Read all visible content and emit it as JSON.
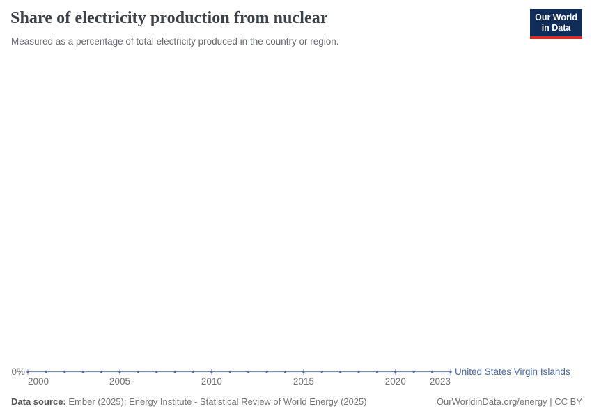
{
  "header": {
    "title": "Share of electricity production from nuclear",
    "subtitle": "Measured as a percentage of total electricity produced in the country or region.",
    "logo": {
      "line1": "Our World",
      "line2": "in Data",
      "bg_color": "#102c58",
      "accent_color": "#dc2d25"
    }
  },
  "chart_data": {
    "type": "line",
    "title": "Share of electricity production from nuclear",
    "x": [
      2000,
      2001,
      2002,
      2003,
      2004,
      2005,
      2006,
      2007,
      2008,
      2009,
      2010,
      2011,
      2012,
      2013,
      2014,
      2015,
      2016,
      2017,
      2018,
      2019,
      2020,
      2021,
      2022,
      2023
    ],
    "series": [
      {
        "name": "United States Virgin Islands",
        "color": "#4c6ba9",
        "values": [
          0,
          0,
          0,
          0,
          0,
          0,
          0,
          0,
          0,
          0,
          0,
          0,
          0,
          0,
          0,
          0,
          0,
          0,
          0,
          0,
          0,
          0,
          0,
          0
        ]
      }
    ],
    "x_tick_labels": [
      2000,
      2005,
      2010,
      2015,
      2020,
      2023
    ],
    "y_axis_tick": "0%",
    "ylim": [
      0,
      0
    ],
    "xlabel": "",
    "ylabel": "",
    "grid": false,
    "legend_position": "end-of-line"
  },
  "footer": {
    "source_label": "Data source:",
    "source_text": " Ember (2025); Energy Institute - Statistical Review of World Energy (2025)",
    "credit": "OurWorldinData.org/energy | CC BY"
  }
}
